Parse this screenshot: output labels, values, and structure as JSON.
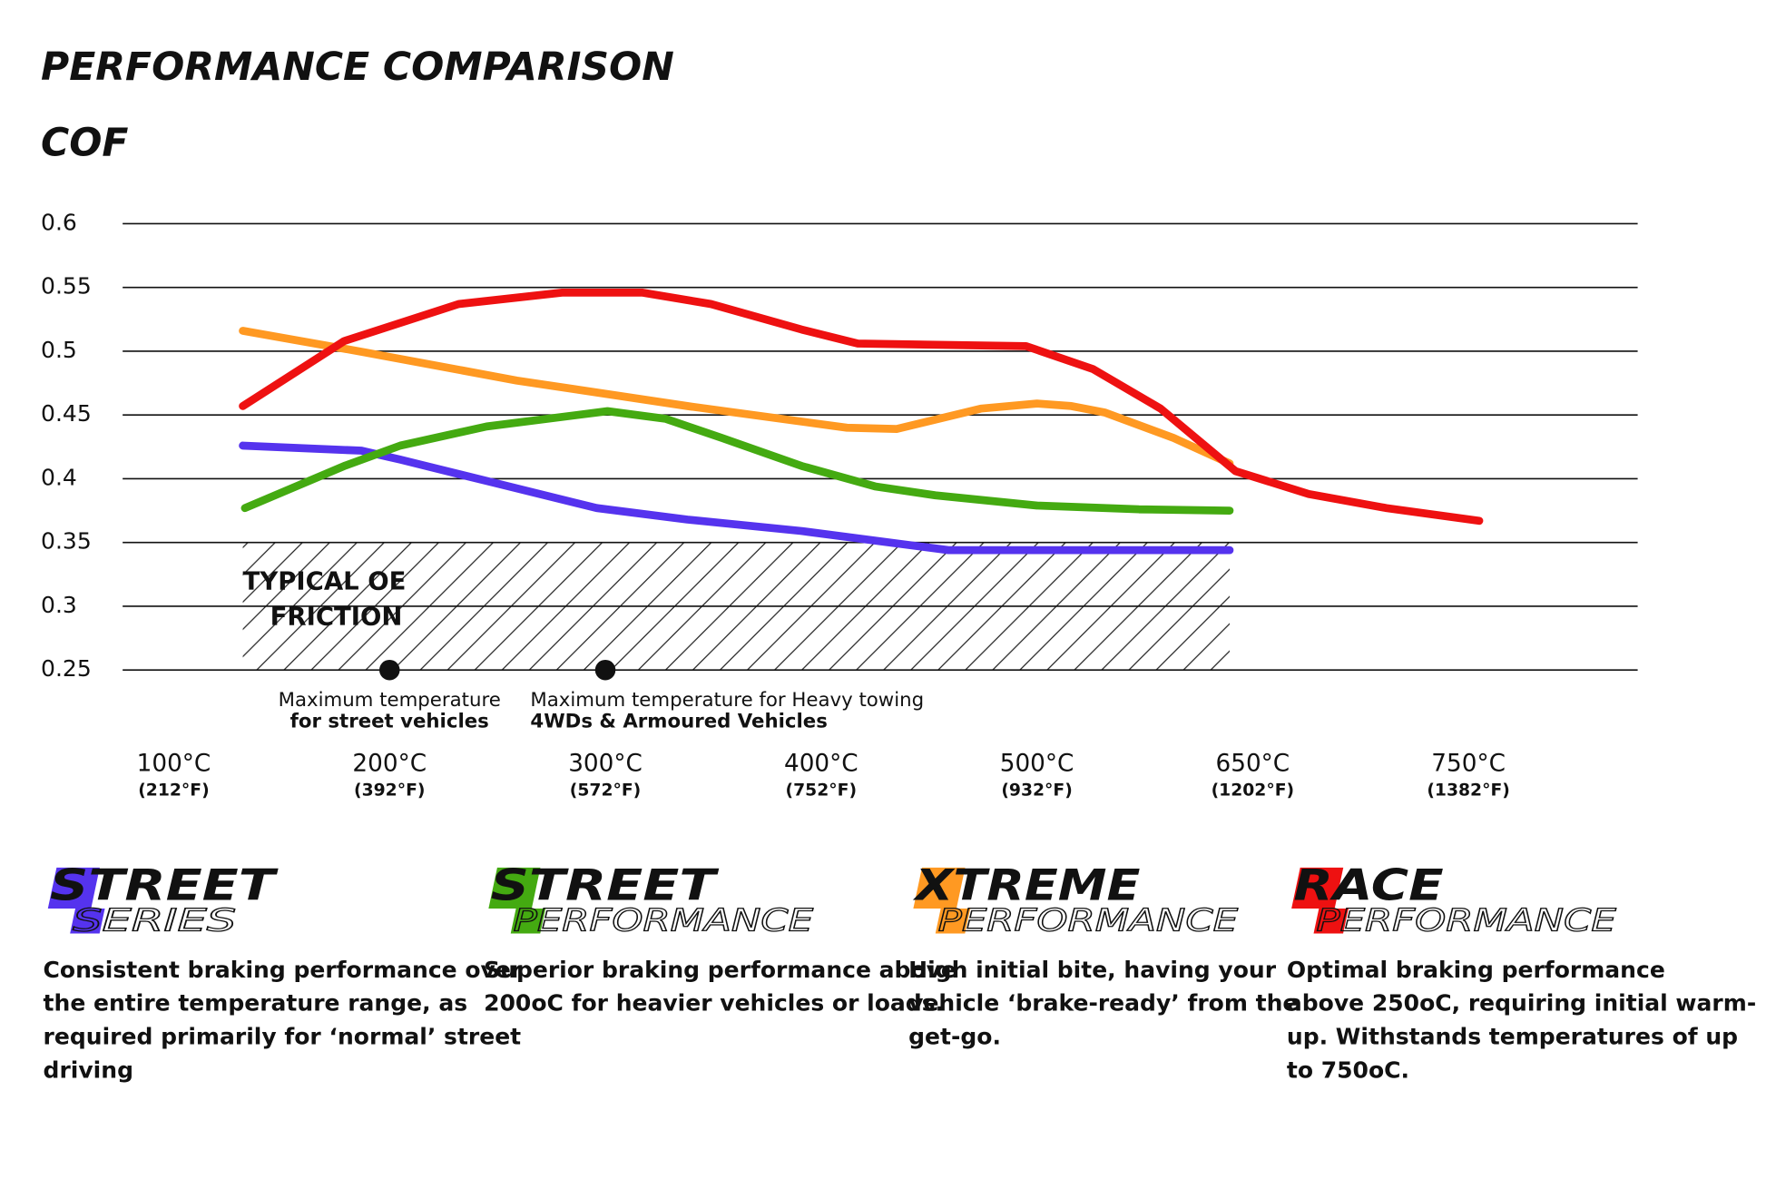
{
  "chart_data": {
    "type": "line",
    "title": "PERFORMANCE COMPARISON",
    "y_label": "COF",
    "ylim": [
      0.25,
      0.6
    ],
    "yticks": [
      0.6,
      0.55,
      0.5,
      0.45,
      0.4,
      0.35,
      0.3,
      0.25
    ],
    "grid": true,
    "xticks": [
      {
        "value": 100,
        "label": "100°C",
        "sublabel": "(212°F)"
      },
      {
        "value": 200,
        "label": "200°C",
        "sublabel": "(392°F)"
      },
      {
        "value": 300,
        "label": "300°C",
        "sublabel": "(572°F)"
      },
      {
        "value": 400,
        "label": "400°C",
        "sublabel": "(752°F)"
      },
      {
        "value": 500,
        "label": "500°C",
        "sublabel": "(932°F)"
      },
      {
        "value": 650,
        "label": "650°C",
        "sublabel": "(1202°F)"
      },
      {
        "value": 750,
        "label": "750°C",
        "sublabel": "(1382°F)"
      }
    ],
    "series": [
      {
        "color": "#5533ee",
        "x": [
          132,
          187,
          205,
          248,
          296,
          338,
          391,
          459,
          634
        ],
        "values": [
          0.426,
          0.422,
          0.415,
          0.397,
          0.377,
          0.368,
          0.359,
          0.344,
          0.344
        ]
      },
      {
        "color": "#44aa11",
        "x": [
          133,
          179,
          205,
          245,
          301,
          328,
          354,
          391,
          425,
          453,
          500,
          571,
          634
        ],
        "values": [
          0.377,
          0.41,
          0.426,
          0.441,
          0.453,
          0.447,
          0.432,
          0.41,
          0.394,
          0.387,
          0.379,
          0.376,
          0.375
        ]
      },
      {
        "color": "#ff9922",
        "x": [
          132,
          189,
          259,
          338,
          412,
          435,
          474,
          500,
          524,
          547,
          595,
          634
        ],
        "values": [
          0.516,
          0.499,
          0.477,
          0.457,
          0.44,
          0.439,
          0.455,
          0.459,
          0.457,
          0.452,
          0.432,
          0.412
        ]
      },
      {
        "color": "#ee1111",
        "x": [
          132,
          179,
          232,
          280,
          317,
          349,
          391,
          417,
          495,
          539,
          586,
          638,
          676,
          712,
          755
        ],
        "values": [
          0.457,
          0.508,
          0.537,
          0.546,
          0.546,
          0.537,
          0.517,
          0.506,
          0.504,
          0.486,
          0.455,
          0.406,
          0.388,
          0.377,
          0.367
        ]
      }
    ],
    "region": {
      "label": [
        "TYPICAL OE",
        "FRICTION"
      ],
      "x": [
        132,
        634
      ],
      "y": [
        0.25,
        0.35
      ]
    },
    "annotations": [
      {
        "x": 200,
        "lines": [
          "Maximum temperature",
          "for street vehicles"
        ]
      },
      {
        "x": 300,
        "lines": [
          "Maximum temperature for Heavy towing",
          "4WDs & Armoured Vehicles"
        ]
      }
    ]
  },
  "products": [
    {
      "top": "STREET",
      "bottom": "SERIES",
      "color": "#5533ee",
      "description": [
        "Consistent braking performance over",
        "the entire temperature range, as",
        "required primarily for ‘normal’ street",
        "driving"
      ]
    },
    {
      "top": "STREET",
      "bottom": "PERFORMANCE",
      "color": "#44aa11",
      "description": [
        "Superior braking performance above",
        "200oC for heavier vehicles or loads."
      ]
    },
    {
      "top": "XTREME",
      "bottom": "PERFORMANCE",
      "color": "#ff9922",
      "description": [
        "High initial bite, having your",
        "vehicle ‘brake-ready’ from the",
        "get-go."
      ]
    },
    {
      "top": "RACE",
      "bottom": "PERFORMANCE",
      "color": "#ee1111",
      "description": [
        "Optimal braking performance",
        "above 250oC, requiring initial warm-",
        "up. Withstands temperatures of up",
        "to 750oC."
      ]
    }
  ]
}
